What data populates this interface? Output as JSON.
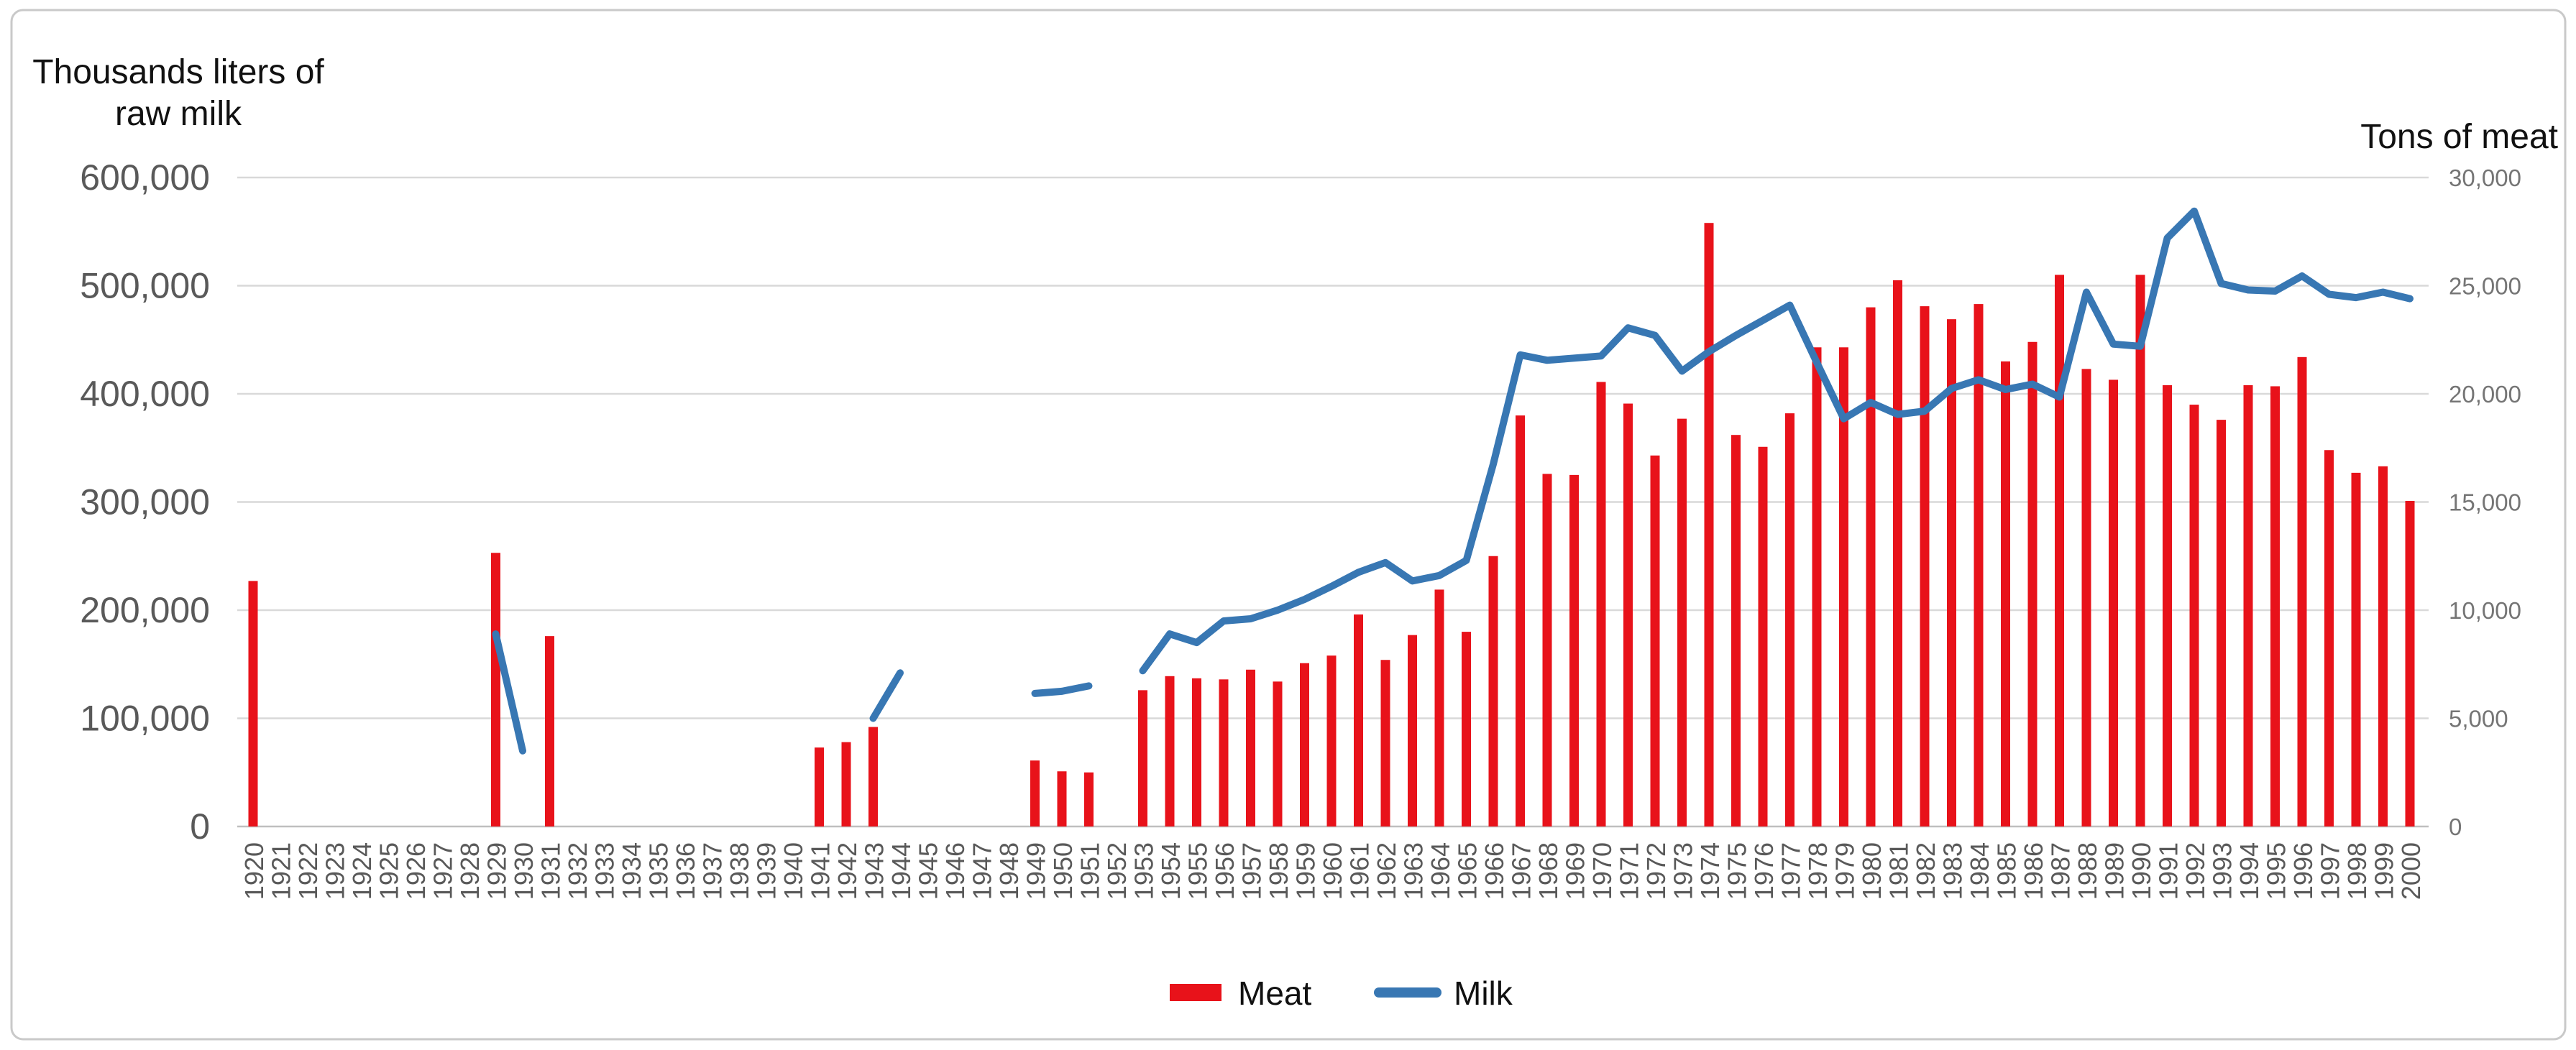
{
  "figure": {
    "left_axis_title_line1": "Thousands liters of",
    "left_axis_title_line2": "raw milk",
    "right_axis_title": "Tons of meat",
    "legend": {
      "meat_label": "Meat",
      "milk_label": "Milk"
    }
  },
  "colors": {
    "meat_red": "#e8121a",
    "milk_blue": "#3877b3",
    "gridline": "#d9d9d9",
    "axis_line": "#bfbfbf",
    "tick_text": "#595959",
    "right_tick_text": "#757575",
    "title_text": "#111111",
    "frame_border": "#c9c9c9"
  },
  "chart_data": {
    "type": "combo_bar_line",
    "title": "",
    "x": [
      1920,
      1921,
      1922,
      1923,
      1924,
      1925,
      1926,
      1927,
      1928,
      1929,
      1930,
      1931,
      1932,
      1933,
      1934,
      1935,
      1936,
      1937,
      1938,
      1939,
      1940,
      1941,
      1942,
      1943,
      1944,
      1945,
      1946,
      1947,
      1948,
      1949,
      1950,
      1951,
      1952,
      1953,
      1954,
      1955,
      1956,
      1957,
      1958,
      1959,
      1960,
      1961,
      1962,
      1963,
      1964,
      1965,
      1966,
      1967,
      1968,
      1969,
      1970,
      1971,
      1972,
      1973,
      1974,
      1975,
      1976,
      1977,
      1978,
      1979,
      1980,
      1981,
      1982,
      1983,
      1984,
      1985,
      1986,
      1987,
      1988,
      1989,
      1990,
      1991,
      1992,
      1993,
      1994,
      1995,
      1996,
      1997,
      1998,
      1999,
      2000
    ],
    "series": [
      {
        "name": "Meat",
        "type": "bar",
        "axis": "right",
        "unit": "tons of meat",
        "values": [
          11350,
          null,
          null,
          null,
          null,
          null,
          null,
          null,
          null,
          12650,
          null,
          8800,
          null,
          null,
          null,
          null,
          null,
          null,
          null,
          null,
          null,
          3650,
          3900,
          4600,
          null,
          null,
          null,
          null,
          null,
          3050,
          2550,
          2500,
          null,
          6300,
          6950,
          6850,
          6800,
          7250,
          6700,
          7550,
          7900,
          9800,
          7700,
          8850,
          10950,
          9000,
          12500,
          19000,
          16300,
          16250,
          20550,
          19550,
          17150,
          18850,
          27900,
          18100,
          17550,
          19100,
          22150,
          22150,
          24000,
          25250,
          24050,
          23450,
          24150,
          21500,
          22400,
          25500,
          21150,
          20650,
          25500,
          20400,
          19500,
          18800,
          20400,
          20350,
          21700,
          17400,
          16350,
          16650,
          15050
        ]
      },
      {
        "name": "Milk",
        "type": "line",
        "axis": "left",
        "unit": "thousands liters of raw milk",
        "values": [
          null,
          null,
          null,
          null,
          null,
          null,
          null,
          null,
          null,
          178000,
          70000,
          null,
          null,
          null,
          null,
          null,
          null,
          null,
          null,
          null,
          null,
          null,
          null,
          100000,
          142000,
          null,
          null,
          null,
          null,
          123000,
          125000,
          130000,
          null,
          144000,
          178000,
          170000,
          190000,
          192000,
          200000,
          210000,
          222000,
          235000,
          244000,
          227000,
          232000,
          246000,
          335000,
          436000,
          431000,
          433000,
          435000,
          461000,
          454000,
          421000,
          439000,
          454000,
          468000,
          482000,
          429000,
          377000,
          392000,
          381000,
          384000,
          405000,
          413000,
          404000,
          409000,
          397000,
          494000,
          446000,
          444000,
          544000,
          569000,
          502000,
          496000,
          495000,
          509000,
          492000,
          489000,
          494000,
          488000
        ]
      }
    ],
    "left_axis": {
      "title": "Thousands liters of raw milk",
      "range": [
        0,
        600000
      ],
      "tick_interval": 100000,
      "tick_labels": [
        "0",
        "100,000",
        "200,000",
        "300,000",
        "400,000",
        "500,000",
        "600,000"
      ]
    },
    "right_axis": {
      "title": "Tons of meat",
      "range": [
        0,
        30000
      ],
      "tick_interval": 5000,
      "tick_labels": [
        "0",
        "5,000",
        "10,000",
        "15,000",
        "20,000",
        "25,000",
        "30,000"
      ]
    },
    "x_axis": {
      "tick_labels": [
        "1920",
        "1921",
        "1922",
        "1923",
        "1924",
        "1925",
        "1926",
        "1927",
        "1928",
        "1929",
        "1930",
        "1931",
        "1932",
        "1933",
        "1934",
        "1935",
        "1936",
        "1937",
        "1938",
        "1939",
        "1940",
        "1941",
        "1942",
        "1943",
        "1944",
        "1945",
        "1946",
        "1947",
        "1948",
        "1949",
        "1950",
        "1951",
        "1952",
        "1953",
        "1954",
        "1955",
        "1956",
        "1957",
        "1958",
        "1959",
        "1960",
        "1961",
        "1962",
        "1963",
        "1964",
        "1965",
        "1966",
        "1967",
        "1968",
        "1969",
        "1970",
        "1971",
        "1972",
        "1973",
        "1974",
        "1975",
        "1976",
        "1977",
        "1978",
        "1979",
        "1980",
        "1981",
        "1982",
        "1983",
        "1984",
        "1985",
        "1986",
        "1987",
        "1988",
        "1989",
        "1990",
        "1991",
        "1992",
        "1993",
        "1994",
        "1995",
        "1996",
        "1997",
        "1998",
        "1999",
        "2000"
      ]
    },
    "grid": true,
    "legend_position": "bottom-center"
  }
}
